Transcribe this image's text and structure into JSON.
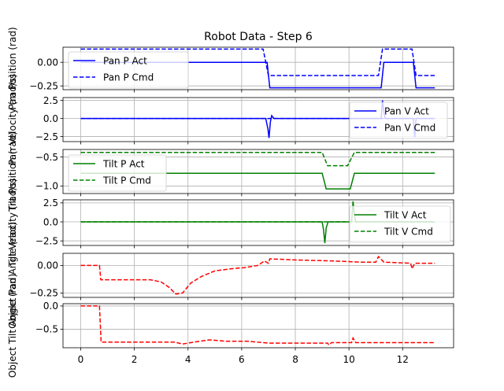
{
  "chart_data": {
    "type": "line",
    "title": "Robot Data - Step 6",
    "x_ticks": [
      0,
      2,
      4,
      6,
      8,
      10,
      12
    ],
    "xlim": [
      -0.66,
      13.9
    ],
    "grid": true,
    "panels": [
      {
        "ylabel": "Pan Position (rad)",
        "ylim": [
          -0.29,
          0.16
        ],
        "y_ticks": [
          {
            "v": 0.0,
            "label": "0.00"
          },
          {
            "v": -0.25,
            "label": "−0.25"
          }
        ],
        "legend": "upper-left",
        "series": [
          {
            "name": "Pan P Act",
            "color": "#0000ff",
            "style": "solid",
            "points": [
              [
                0,
                0.0
              ],
              [
                6.95,
                0.0
              ],
              [
                7.05,
                -0.27
              ],
              [
                11.2,
                -0.27
              ],
              [
                11.3,
                0.0
              ],
              [
                12.4,
                0.0
              ],
              [
                12.5,
                -0.27
              ],
              [
                13.2,
                -0.27
              ]
            ]
          },
          {
            "name": "Pan P Cmd",
            "color": "#0000ff",
            "style": "dashed",
            "points": [
              [
                0,
                0.14
              ],
              [
                6.8,
                0.14
              ],
              [
                7.0,
                -0.14
              ],
              [
                11.1,
                -0.14
              ],
              [
                11.25,
                0.14
              ],
              [
                12.35,
                0.14
              ],
              [
                12.5,
                -0.14
              ],
              [
                13.2,
                -0.14
              ]
            ]
          }
        ]
      },
      {
        "ylabel": "Pan Velocity (rad/s)",
        "ylim": [
          -3.2,
          2.9
        ],
        "y_ticks": [
          {
            "v": 2.5,
            "label": "2.5"
          },
          {
            "v": 0.0,
            "label": "0.0"
          },
          {
            "v": -2.5,
            "label": "−2.5"
          }
        ],
        "legend": "right",
        "series": [
          {
            "name": "Pan V Act",
            "color": "#0000ff",
            "style": "solid",
            "points": [
              [
                0,
                0
              ],
              [
                6.9,
                0
              ],
              [
                6.98,
                -1.5
              ],
              [
                7.02,
                -2.7
              ],
              [
                7.07,
                -0.5
              ],
              [
                7.12,
                0.4
              ],
              [
                7.2,
                0
              ],
              [
                11.2,
                0
              ],
              [
                11.25,
                2.5
              ],
              [
                11.3,
                1.0
              ],
              [
                11.35,
                0
              ],
              [
                12.4,
                0
              ],
              [
                12.45,
                -2.6
              ],
              [
                12.5,
                0
              ],
              [
                13.2,
                0
              ]
            ]
          },
          {
            "name": "Pan V Cmd",
            "color": "#0000ff",
            "style": "dashed",
            "points": [
              [
                0,
                0
              ],
              [
                13.2,
                0
              ]
            ]
          }
        ]
      },
      {
        "ylabel": "Tilt Position (rad)",
        "ylim": [
          -1.13,
          -0.37
        ],
        "y_ticks": [
          {
            "v": -0.5,
            "label": "−0.5"
          },
          {
            "v": -1.0,
            "label": "−1.0"
          }
        ],
        "legend": "upper-left",
        "series": [
          {
            "name": "Tilt P Act",
            "color": "#008000",
            "style": "solid",
            "points": [
              [
                0,
                -0.78
              ],
              [
                9.0,
                -0.78
              ],
              [
                9.15,
                -1.05
              ],
              [
                10.05,
                -1.05
              ],
              [
                10.2,
                -0.78
              ],
              [
                13.2,
                -0.78
              ]
            ]
          },
          {
            "name": "Tilt P Cmd",
            "color": "#008000",
            "style": "dashed",
            "points": [
              [
                0,
                -0.42
              ],
              [
                9.0,
                -0.42
              ],
              [
                9.2,
                -0.65
              ],
              [
                9.95,
                -0.65
              ],
              [
                10.2,
                -0.42
              ],
              [
                13.2,
                -0.42
              ]
            ]
          }
        ]
      },
      {
        "ylabel": "Tilt Velocity (rad/s)",
        "ylim": [
          -3.1,
          2.9
        ],
        "y_ticks": [
          {
            "v": 2.5,
            "label": "2.5"
          },
          {
            "v": 0.0,
            "label": "0.0"
          },
          {
            "v": -2.5,
            "label": "−2.5"
          }
        ],
        "legend": "right",
        "series": [
          {
            "name": "Tilt V Act",
            "color": "#008000",
            "style": "solid",
            "points": [
              [
                0,
                0
              ],
              [
                9.0,
                0
              ],
              [
                9.05,
                -1.0
              ],
              [
                9.1,
                -2.8
              ],
              [
                9.15,
                -0.8
              ],
              [
                9.22,
                0
              ],
              [
                10.1,
                0
              ],
              [
                10.15,
                2.7
              ],
              [
                10.2,
                1.0
              ],
              [
                10.25,
                0
              ],
              [
                13.2,
                0
              ]
            ]
          },
          {
            "name": "Tilt V Cmd",
            "color": "#008000",
            "style": "dashed",
            "points": [
              [
                0,
                0
              ],
              [
                13.2,
                0
              ]
            ]
          }
        ]
      },
      {
        "ylabel": "Object Pan Angle (rad)",
        "ylim": [
          -0.29,
          0.11
        ],
        "y_ticks": [
          {
            "v": 0.0,
            "label": "0.00"
          },
          {
            "v": -0.25,
            "label": "−0.25"
          }
        ],
        "legend": "none",
        "series": [
          {
            "name": "",
            "color": "#ff0000",
            "style": "dashed",
            "points": [
              [
                0,
                0
              ],
              [
                0.7,
                0
              ],
              [
                0.75,
                -0.13
              ],
              [
                2.6,
                -0.13
              ],
              [
                3.0,
                -0.15
              ],
              [
                3.3,
                -0.2
              ],
              [
                3.55,
                -0.26
              ],
              [
                3.8,
                -0.25
              ],
              [
                4.1,
                -0.16
              ],
              [
                4.5,
                -0.1
              ],
              [
                5.0,
                -0.05
              ],
              [
                5.6,
                -0.03
              ],
              [
                6.1,
                -0.02
              ],
              [
                6.6,
                0.0
              ],
              [
                6.85,
                0.04
              ],
              [
                7.0,
                0.02
              ],
              [
                7.05,
                0.06
              ],
              [
                8.0,
                0.05
              ],
              [
                9.5,
                0.04
              ],
              [
                10.4,
                0.03
              ],
              [
                11.0,
                0.03
              ],
              [
                11.1,
                0.08
              ],
              [
                11.3,
                0.03
              ],
              [
                12.3,
                0.02
              ],
              [
                12.35,
                -0.03
              ],
              [
                12.45,
                0.02
              ],
              [
                13.2,
                0.02
              ]
            ]
          }
        ]
      },
      {
        "ylabel": "Object Tilt Angle (rad)",
        "ylim": [
          -0.9,
          0.05
        ],
        "y_ticks": [
          {
            "v": 0.0,
            "label": "0.0"
          },
          {
            "v": -0.5,
            "label": "−0.5"
          }
        ],
        "legend": "none",
        "series": [
          {
            "name": "",
            "color": "#ff0000",
            "style": "dashed",
            "points": [
              [
                0,
                0
              ],
              [
                0.7,
                0
              ],
              [
                0.76,
                -0.78
              ],
              [
                3.5,
                -0.78
              ],
              [
                3.8,
                -0.82
              ],
              [
                4.2,
                -0.78
              ],
              [
                4.8,
                -0.73
              ],
              [
                5.4,
                -0.76
              ],
              [
                6.2,
                -0.76
              ],
              [
                7.0,
                -0.8
              ],
              [
                8.5,
                -0.8
              ],
              [
                9.2,
                -0.8
              ],
              [
                9.25,
                -0.84
              ],
              [
                9.35,
                -0.79
              ],
              [
                10.1,
                -0.79
              ],
              [
                10.15,
                -0.69
              ],
              [
                10.25,
                -0.79
              ],
              [
                13.2,
                -0.79
              ]
            ]
          }
        ]
      }
    ]
  }
}
